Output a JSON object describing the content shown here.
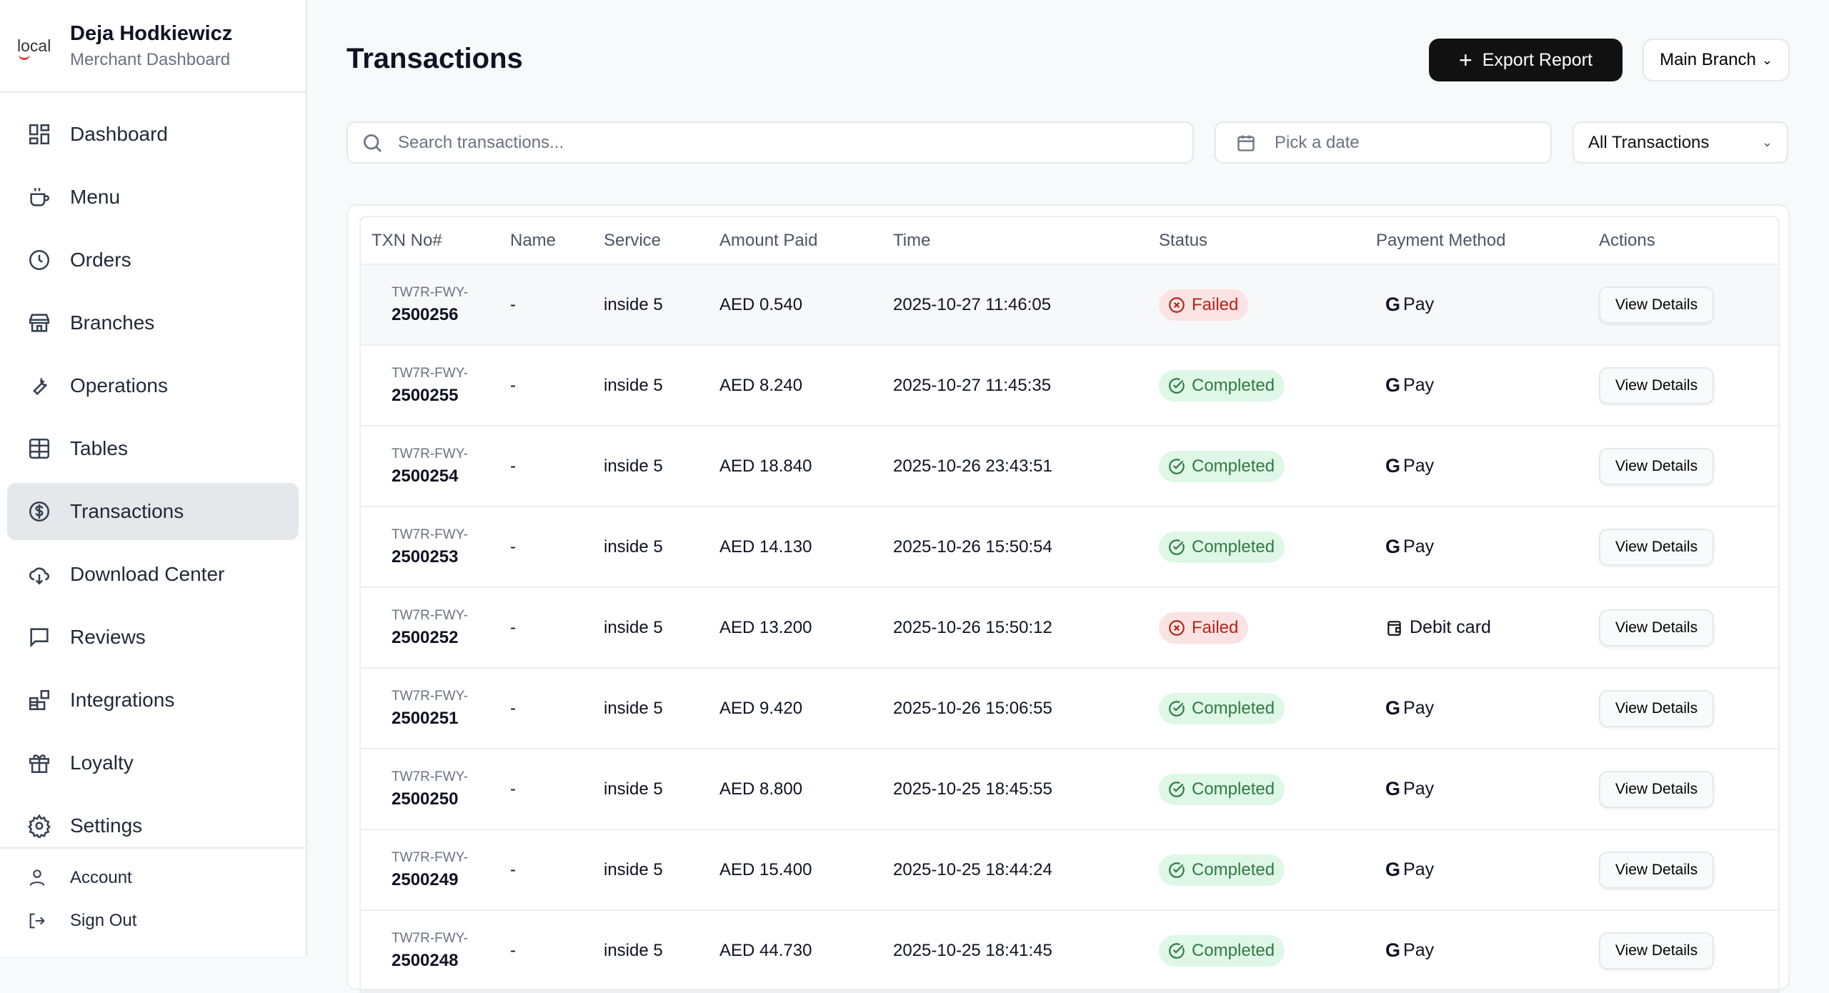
{
  "brand": {
    "logo": "local",
    "name": "Deja Hodkiewicz",
    "subtitle": "Merchant Dashboard"
  },
  "nav": [
    {
      "label": "Dashboard",
      "icon": "dashboard-icon"
    },
    {
      "label": "Menu",
      "icon": "cup-icon"
    },
    {
      "label": "Orders",
      "icon": "clock-icon"
    },
    {
      "label": "Branches",
      "icon": "store-icon"
    },
    {
      "label": "Operations",
      "icon": "wrench-icon"
    },
    {
      "label": "Tables",
      "icon": "table-icon"
    },
    {
      "label": "Transactions",
      "icon": "dollar-circle-icon",
      "active": true
    },
    {
      "label": "Download Center",
      "icon": "cloud-download-icon"
    },
    {
      "label": "Reviews",
      "icon": "message-icon"
    },
    {
      "label": "Integrations",
      "icon": "blocks-icon"
    },
    {
      "label": "Loyalty",
      "icon": "gift-icon"
    },
    {
      "label": "Settings",
      "icon": "gear-icon"
    }
  ],
  "footer": {
    "account": "Account",
    "signout": "Sign Out"
  },
  "header": {
    "title": "Transactions",
    "export": "Export Report",
    "branch": "Main Branch"
  },
  "filters": {
    "search_placeholder": "Search transactions...",
    "date_placeholder": "Pick a date",
    "type": "All Transactions"
  },
  "table": {
    "columns": [
      "TXN No#",
      "Name",
      "Service",
      "Amount Paid",
      "Time",
      "Status",
      "Payment Method",
      "Actions"
    ],
    "action_label": "View Details",
    "rows": [
      {
        "prefix": "TW7R-FWY-",
        "id": "2500256",
        "name": "-",
        "service": "inside 5",
        "amount": "AED 0.540",
        "time": "2025-10-27 11:46:05",
        "status": "Failed",
        "payment": "Pay",
        "method": "gpay"
      },
      {
        "prefix": "TW7R-FWY-",
        "id": "2500255",
        "name": "-",
        "service": "inside 5",
        "amount": "AED 8.240",
        "time": "2025-10-27 11:45:35",
        "status": "Completed",
        "payment": "Pay",
        "method": "gpay"
      },
      {
        "prefix": "TW7R-FWY-",
        "id": "2500254",
        "name": "-",
        "service": "inside 5",
        "amount": "AED 18.840",
        "time": "2025-10-26 23:43:51",
        "status": "Completed",
        "payment": "Pay",
        "method": "gpay"
      },
      {
        "prefix": "TW7R-FWY-",
        "id": "2500253",
        "name": "-",
        "service": "inside 5",
        "amount": "AED 14.130",
        "time": "2025-10-26 15:50:54",
        "status": "Completed",
        "payment": "Pay",
        "method": "gpay"
      },
      {
        "prefix": "TW7R-FWY-",
        "id": "2500252",
        "name": "-",
        "service": "inside 5",
        "amount": "AED 13.200",
        "time": "2025-10-26 15:50:12",
        "status": "Failed",
        "payment": "Debit card",
        "method": "card"
      },
      {
        "prefix": "TW7R-FWY-",
        "id": "2500251",
        "name": "-",
        "service": "inside 5",
        "amount": "AED 9.420",
        "time": "2025-10-26 15:06:55",
        "status": "Completed",
        "payment": "Pay",
        "method": "gpay"
      },
      {
        "prefix": "TW7R-FWY-",
        "id": "2500250",
        "name": "-",
        "service": "inside 5",
        "amount": "AED 8.800",
        "time": "2025-10-25 18:45:55",
        "status": "Completed",
        "payment": "Pay",
        "method": "gpay"
      },
      {
        "prefix": "TW7R-FWY-",
        "id": "2500249",
        "name": "-",
        "service": "inside 5",
        "amount": "AED 15.400",
        "time": "2025-10-25 18:44:24",
        "status": "Completed",
        "payment": "Pay",
        "method": "gpay"
      },
      {
        "prefix": "TW7R-FWY-",
        "id": "2500248",
        "name": "-",
        "service": "inside 5",
        "amount": "AED 44.730",
        "time": "2025-10-25 18:41:45",
        "status": "Completed",
        "payment": "Pay",
        "method": "gpay"
      }
    ]
  }
}
